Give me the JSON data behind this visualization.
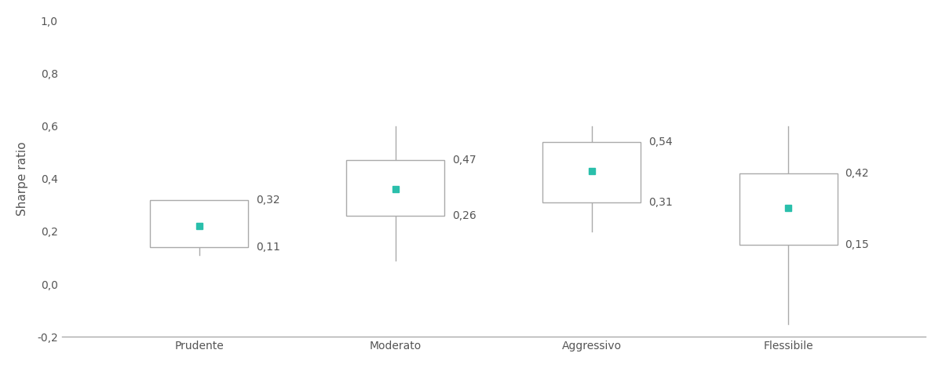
{
  "categories": [
    "Prudente",
    "Moderato",
    "Aggressivo",
    "Flessibile"
  ],
  "boxes": [
    {
      "q1": 0.14,
      "q3": 0.32,
      "whisker_low": 0.11,
      "whisker_high": 0.32,
      "mean": 0.22,
      "label_low": "0,11",
      "label_high": "0,32"
    },
    {
      "q1": 0.26,
      "q3": 0.47,
      "whisker_low": 0.09,
      "whisker_high": 0.6,
      "mean": 0.36,
      "label_low": "0,26",
      "label_high": "0,47"
    },
    {
      "q1": 0.31,
      "q3": 0.54,
      "whisker_low": 0.2,
      "whisker_high": 0.6,
      "mean": 0.43,
      "label_low": "0,31",
      "label_high": "0,54"
    },
    {
      "q1": 0.15,
      "q3": 0.42,
      "whisker_low": -0.15,
      "whisker_high": 0.6,
      "mean": 0.29,
      "label_low": "0,15",
      "label_high": "0,42"
    }
  ],
  "ylabel": "Sharpe ratio",
  "ylim": [
    -0.2,
    1.0
  ],
  "yticks": [
    -0.2,
    0.0,
    0.2,
    0.4,
    0.6,
    0.8,
    1.0
  ],
  "ytick_labels": [
    "-0,2",
    "0,0",
    "0,2",
    "0,4",
    "0,6",
    "0,8",
    "1,0"
  ],
  "box_color": "#ffffff",
  "box_edge_color": "#aaaaaa",
  "whisker_color": "#aaaaaa",
  "mean_marker_color": "#2abfab",
  "mean_marker_size": 6,
  "annotation_fontsize": 10,
  "axis_label_fontsize": 11,
  "tick_label_fontsize": 10,
  "background_color": "#ffffff",
  "box_width": 0.5,
  "annotation_color": "#555555"
}
